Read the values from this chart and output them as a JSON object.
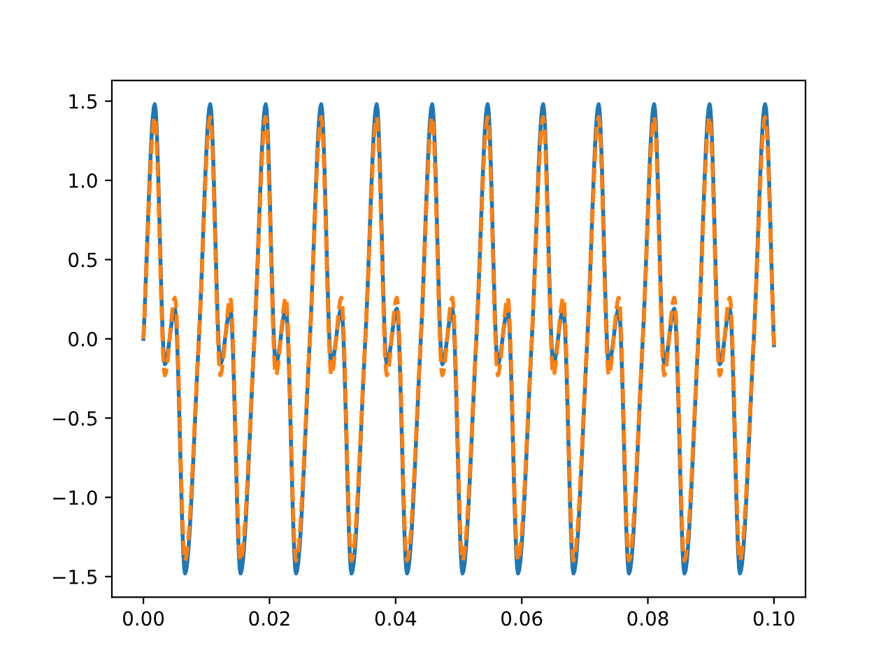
{
  "chart_data": {
    "type": "line",
    "x": [
      0,
      0.0018,
      0.0034,
      0.005,
      0.0066,
      0.0088,
      0.0106,
      0.0122,
      0.0138,
      0.0154,
      0.0176,
      0.0194,
      0.021,
      0.0226,
      0.0242,
      0.0264,
      0.0282,
      0.0298,
      0.0314,
      0.033,
      0.0352,
      0.037,
      0.0386,
      0.0402,
      0.0418,
      0.044,
      0.0458,
      0.0474,
      0.049,
      0.0506,
      0.0528,
      0.0546,
      0.0562,
      0.0578,
      0.0594,
      0.0616,
      0.0634,
      0.065,
      0.0666,
      0.0682,
      0.0704,
      0.0722,
      0.0738,
      0.0754,
      0.077,
      0.0792,
      0.081,
      0.0826,
      0.0842,
      0.0858,
      0.088,
      0.0898,
      0.0914,
      0.093,
      0.0946,
      0.0968,
      0.0986,
      0.1
    ],
    "series": [
      {
        "color": "#1f77b4",
        "line_style": "solid",
        "values": [
          0,
          1.48,
          -0.16,
          0.19,
          -1.48,
          0,
          1.48,
          -0.16,
          0.19,
          -1.48,
          0,
          1.48,
          -0.16,
          0.19,
          -1.48,
          0,
          1.48,
          -0.16,
          0.19,
          -1.48,
          0,
          1.48,
          -0.16,
          0.19,
          -1.48,
          0,
          1.48,
          -0.16,
          0.19,
          -1.48,
          0,
          1.48,
          -0.16,
          0.19,
          -1.48,
          0,
          1.48,
          -0.16,
          0.19,
          -1.48,
          0,
          1.48,
          -0.16,
          0.19,
          -1.48,
          0,
          1.48,
          -0.16,
          0.19,
          -1.48,
          0,
          1.48,
          -0.16,
          0.19,
          -1.48,
          0,
          1.48,
          -0.04
        ]
      },
      {
        "color": "#ff7f0e",
        "line_style": "dashed",
        "values": [
          0,
          1.4,
          -0.23,
          0.26,
          -1.4,
          0,
          1.4,
          -0.23,
          0.26,
          -1.4,
          0,
          1.4,
          -0.23,
          0.26,
          -1.4,
          0,
          1.4,
          -0.23,
          0.26,
          -1.4,
          0,
          1.4,
          -0.23,
          0.26,
          -1.4,
          0,
          1.4,
          -0.23,
          0.26,
          -1.4,
          0,
          1.4,
          -0.23,
          0.26,
          -1.4,
          0,
          1.4,
          -0.23,
          0.26,
          -1.4,
          0,
          1.4,
          -0.23,
          0.26,
          -1.4,
          0,
          1.4,
          -0.23,
          0.26,
          -1.4,
          0,
          1.4,
          -0.23,
          0.26,
          -1.4,
          0,
          1.4,
          -0.04
        ]
      }
    ],
    "xlim": [
      -0.005,
      0.105
    ],
    "ylim": [
      -1.63,
      1.63
    ],
    "xticks": [
      {
        "value": 0,
        "label": "0.00"
      },
      {
        "value": 0.02,
        "label": "0.02"
      },
      {
        "value": 0.04,
        "label": "0.04"
      },
      {
        "value": 0.06,
        "label": "0.06"
      },
      {
        "value": 0.08,
        "label": "0.08"
      },
      {
        "value": 0.1,
        "label": "0.10"
      }
    ],
    "yticks": [
      {
        "value": -1.5,
        "label": "−1.5"
      },
      {
        "value": -1.0,
        "label": "−1.0"
      },
      {
        "value": -0.5,
        "label": "−0.5"
      },
      {
        "value": 0,
        "label": "0.0"
      },
      {
        "value": 0.5,
        "label": "0.5"
      },
      {
        "value": 1.0,
        "label": "1.0"
      },
      {
        "value": 1.5,
        "label": "1.5"
      }
    ],
    "grid": false,
    "legend": false,
    "marker": "none"
  }
}
